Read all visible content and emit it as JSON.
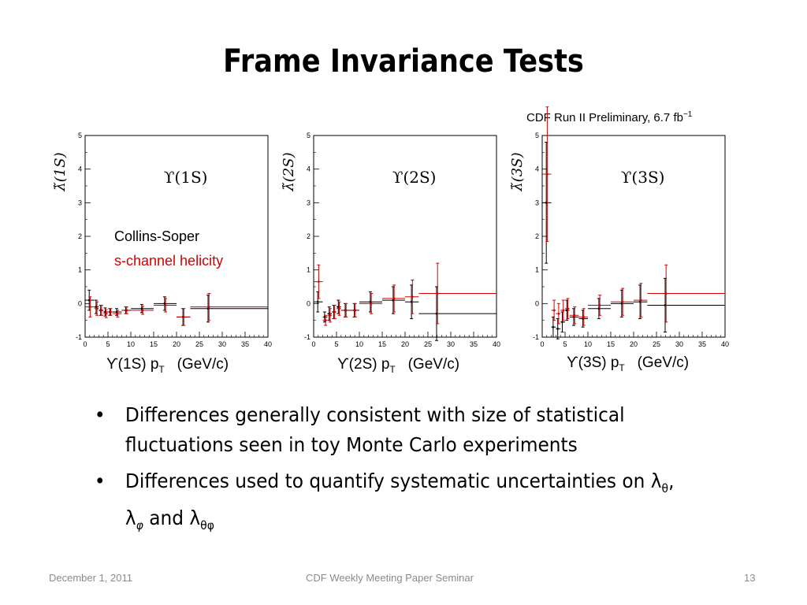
{
  "slide": {
    "title": "Frame Invariance Tests",
    "preliminary_label": "CDF Run II Preliminary, 6.7 fb",
    "preliminary_sup": "−1",
    "legend_line1": "Collins-Soper",
    "legend_line2": "s-channel helicity",
    "bullets": [
      {
        "text": "Differences generally consistent with size of statistical fluctuations seen in toy Monte Carlo experiments"
      },
      {
        "text_pre": "Differences used to quantify systematic uncertainties on λ",
        "sub1": "θ",
        "sep1": ", λ",
        "sub2": "φ",
        "sep2": " and λ",
        "sub3": "θφ"
      }
    ],
    "footer": {
      "date": "December 1, 2011",
      "center": "CDF Weekly Meeting Paper Seminar",
      "page": "13"
    },
    "x_captions": [
      {
        "label": "ϒ(1S) p",
        "sub": "T",
        "unit": "(GeV/c)"
      },
      {
        "label": "ϒ(2S) p",
        "sub": "T",
        "unit": "(GeV/c)"
      },
      {
        "label": "ϒ(3S) p",
        "sub": "T",
        "unit": "(GeV/c)"
      }
    ]
  },
  "colors": {
    "series_cs": "#000000",
    "series_hx": "#d40000",
    "footer": "#8a8a8a",
    "legend_hx": "#d40000"
  },
  "chart_data": [
    {
      "type": "scatter",
      "panel_label": "ϒ(1S)",
      "ylabel": "λ̃(1S)",
      "xlim": [
        0,
        40
      ],
      "ylim": [
        -1,
        5
      ],
      "xticks": [
        0,
        5,
        10,
        15,
        20,
        25,
        30,
        35,
        40
      ],
      "yticks": [
        -1,
        0,
        1,
        2,
        3,
        4,
        5
      ],
      "series": [
        {
          "name": "Collins-Soper",
          "color": "#000000",
          "points": [
            {
              "x": 1,
              "xlo": 0,
              "xhi": 2,
              "y": 0.1,
              "err": 0.3
            },
            {
              "x": 2.5,
              "xlo": 2,
              "xhi": 3,
              "y": -0.1,
              "err": 0.2
            },
            {
              "x": 3.5,
              "xlo": 3,
              "xhi": 4,
              "y": -0.2,
              "err": 0.15
            },
            {
              "x": 4.5,
              "xlo": 4,
              "xhi": 5,
              "y": -0.25,
              "err": 0.12
            },
            {
              "x": 5.5,
              "xlo": 5,
              "xhi": 6,
              "y": -0.25,
              "err": 0.1
            },
            {
              "x": 7,
              "xlo": 6,
              "xhi": 8,
              "y": -0.25,
              "err": 0.1
            },
            {
              "x": 9,
              "xlo": 8,
              "xhi": 10,
              "y": -0.2,
              "err": 0.1
            },
            {
              "x": 12.5,
              "xlo": 10,
              "xhi": 15,
              "y": -0.15,
              "err": 0.12
            },
            {
              "x": 17.5,
              "xlo": 15,
              "xhi": 20,
              "y": 0,
              "err": 0.2
            },
            {
              "x": 21.5,
              "xlo": 20,
              "xhi": 23,
              "y": -0.4,
              "err": 0.25
            },
            {
              "x": 27,
              "xlo": 23,
              "xhi": 40,
              "y": -0.15,
              "err": 0.4
            }
          ]
        },
        {
          "name": "s-channel helicity",
          "color": "#d40000",
          "points": [
            {
              "x": 1,
              "xlo": 0,
              "xhi": 2,
              "y": -0.1,
              "err": 0.3
            },
            {
              "x": 2.5,
              "xlo": 2,
              "xhi": 3,
              "y": -0.15,
              "err": 0.2
            },
            {
              "x": 3.5,
              "xlo": 3,
              "xhi": 4,
              "y": -0.2,
              "err": 0.15
            },
            {
              "x": 4.5,
              "xlo": 4,
              "xhi": 5,
              "y": -0.3,
              "err": 0.12
            },
            {
              "x": 5.5,
              "xlo": 5,
              "xhi": 6,
              "y": -0.25,
              "err": 0.1
            },
            {
              "x": 7,
              "xlo": 6,
              "xhi": 8,
              "y": -0.3,
              "err": 0.1
            },
            {
              "x": 9,
              "xlo": 8,
              "xhi": 10,
              "y": -0.2,
              "err": 0.1
            },
            {
              "x": 12.5,
              "xlo": 10,
              "xhi": 15,
              "y": -0.2,
              "err": 0.12
            },
            {
              "x": 17.5,
              "xlo": 15,
              "xhi": 20,
              "y": -0.05,
              "err": 0.2
            },
            {
              "x": 21.5,
              "xlo": 20,
              "xhi": 23,
              "y": -0.4,
              "err": 0.25
            },
            {
              "x": 27,
              "xlo": 23,
              "xhi": 40,
              "y": -0.1,
              "err": 0.4
            }
          ]
        }
      ]
    },
    {
      "type": "scatter",
      "panel_label": "ϒ(2S)",
      "ylabel": "λ̃(2S)",
      "xlim": [
        0,
        40
      ],
      "ylim": [
        -1,
        5
      ],
      "xticks": [
        0,
        5,
        10,
        15,
        20,
        25,
        30,
        35,
        40
      ],
      "yticks": [
        -1,
        0,
        1,
        2,
        3,
        4,
        5
      ],
      "series": [
        {
          "name": "Collins-Soper",
          "color": "#000000",
          "points": [
            {
              "x": 1,
              "xlo": 0,
              "xhi": 2,
              "y": 0.05,
              "err": 0.3
            },
            {
              "x": 2.5,
              "xlo": 2,
              "xhi": 3,
              "y": -0.4,
              "err": 0.15
            },
            {
              "x": 3.5,
              "xlo": 3,
              "xhi": 4,
              "y": -0.3,
              "err": 0.2
            },
            {
              "x": 4.5,
              "xlo": 4,
              "xhi": 5,
              "y": -0.25,
              "err": 0.2
            },
            {
              "x": 5.5,
              "xlo": 5,
              "xhi": 6,
              "y": -0.1,
              "err": 0.2
            },
            {
              "x": 7,
              "xlo": 6,
              "xhi": 8,
              "y": -0.2,
              "err": 0.2
            },
            {
              "x": 9,
              "xlo": 8,
              "xhi": 10,
              "y": -0.2,
              "err": 0.2
            },
            {
              "x": 12.5,
              "xlo": 10,
              "xhi": 15,
              "y": 0.05,
              "err": 0.3
            },
            {
              "x": 17.5,
              "xlo": 15,
              "xhi": 20,
              "y": 0.1,
              "err": 0.4
            },
            {
              "x": 21.5,
              "xlo": 20,
              "xhi": 23,
              "y": 0.05,
              "err": 0.5
            },
            {
              "x": 27,
              "xlo": 23,
              "xhi": 40,
              "y": -0.3,
              "err": 0.8
            }
          ]
        },
        {
          "name": "s-channel helicity",
          "color": "#d40000",
          "points": [
            {
              "x": 1,
              "xlo": 0,
              "xhi": 2,
              "y": 0.65,
              "err": 0.5
            },
            {
              "x": 2.5,
              "xlo": 2,
              "xhi": 3,
              "y": -0.5,
              "err": 0.15
            },
            {
              "x": 3.5,
              "xlo": 3,
              "xhi": 4,
              "y": -0.35,
              "err": 0.2
            },
            {
              "x": 4.5,
              "xlo": 4,
              "xhi": 5,
              "y": -0.25,
              "err": 0.2
            },
            {
              "x": 5.5,
              "xlo": 5,
              "xhi": 6,
              "y": -0.15,
              "err": 0.2
            },
            {
              "x": 7,
              "xlo": 6,
              "xhi": 8,
              "y": -0.2,
              "err": 0.2
            },
            {
              "x": 9,
              "xlo": 8,
              "xhi": 10,
              "y": -0.2,
              "err": 0.2
            },
            {
              "x": 12.5,
              "xlo": 10,
              "xhi": 15,
              "y": 0,
              "err": 0.3
            },
            {
              "x": 17.5,
              "xlo": 15,
              "xhi": 20,
              "y": 0.15,
              "err": 0.4
            },
            {
              "x": 21.5,
              "xlo": 20,
              "xhi": 23,
              "y": 0.2,
              "err": 0.5
            },
            {
              "x": 27,
              "xlo": 23,
              "xhi": 40,
              "y": 0.3,
              "err": 0.9
            }
          ]
        }
      ]
    },
    {
      "type": "scatter",
      "panel_label": "ϒ(3S)",
      "ylabel": "λ̃(3S)",
      "xlim": [
        0,
        40
      ],
      "ylim": [
        -1,
        5
      ],
      "xticks": [
        0,
        5,
        10,
        15,
        20,
        25,
        30,
        35,
        40
      ],
      "yticks": [
        -1,
        0,
        1,
        2,
        3,
        4,
        5
      ],
      "series": [
        {
          "name": "Collins-Soper",
          "color": "#000000",
          "points": [
            {
              "x": 1,
              "xlo": 0,
              "xhi": 2,
              "y": 3,
              "err": 1.8
            },
            {
              "x": 2.5,
              "xlo": 2,
              "xhi": 3,
              "y": -0.7,
              "err": 0.3
            },
            {
              "x": 3.5,
              "xlo": 3,
              "xhi": 4,
              "y": -0.75,
              "err": 0.3
            },
            {
              "x": 4.5,
              "xlo": 4,
              "xhi": 5,
              "y": -0.55,
              "err": 0.3
            },
            {
              "x": 5.5,
              "xlo": 5,
              "xhi": 6,
              "y": -0.2,
              "err": 0.3
            },
            {
              "x": 7,
              "xlo": 6,
              "xhi": 8,
              "y": -0.4,
              "err": 0.25
            },
            {
              "x": 9,
              "xlo": 8,
              "xhi": 10,
              "y": -0.45,
              "err": 0.25
            },
            {
              "x": 12.5,
              "xlo": 10,
              "xhi": 15,
              "y": -0.15,
              "err": 0.3
            },
            {
              "x": 17.5,
              "xlo": 15,
              "xhi": 20,
              "y": 0,
              "err": 0.4
            },
            {
              "x": 21.5,
              "xlo": 20,
              "xhi": 23,
              "y": 0.05,
              "err": 0.5
            },
            {
              "x": 27,
              "xlo": 23,
              "xhi": 40,
              "y": -0.05,
              "err": 0.8
            }
          ]
        },
        {
          "name": "s-channel helicity",
          "color": "#d40000",
          "points": [
            {
              "x": 1,
              "xlo": 0,
              "xhi": 2,
              "y": 3.85,
              "err": 2.0
            },
            {
              "x": 2.5,
              "xlo": 2,
              "xhi": 3,
              "y": -0.2,
              "err": 0.3
            },
            {
              "x": 3.5,
              "xlo": 3,
              "xhi": 4,
              "y": -0.3,
              "err": 0.3
            },
            {
              "x": 4.5,
              "xlo": 4,
              "xhi": 5,
              "y": -0.2,
              "err": 0.3
            },
            {
              "x": 5.5,
              "xlo": 5,
              "xhi": 6,
              "y": -0.15,
              "err": 0.3
            },
            {
              "x": 7,
              "xlo": 6,
              "xhi": 8,
              "y": -0.35,
              "err": 0.25
            },
            {
              "x": 9,
              "xlo": 8,
              "xhi": 10,
              "y": -0.4,
              "err": 0.25
            },
            {
              "x": 12.5,
              "xlo": 10,
              "xhi": 15,
              "y": -0.05,
              "err": 0.3
            },
            {
              "x": 17.5,
              "xlo": 15,
              "xhi": 20,
              "y": 0.05,
              "err": 0.4
            },
            {
              "x": 21.5,
              "xlo": 20,
              "xhi": 23,
              "y": 0.1,
              "err": 0.5
            },
            {
              "x": 27,
              "xlo": 23,
              "xhi": 40,
              "y": 0.3,
              "err": 0.85
            }
          ]
        }
      ]
    }
  ]
}
